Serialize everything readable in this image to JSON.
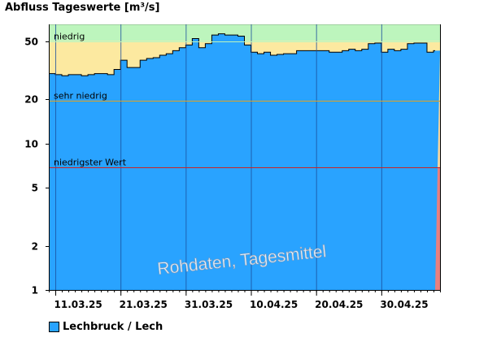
{
  "chart_data": {
    "type": "area",
    "title": "Abfluss Tageswerte [m³/s]",
    "yscale": "log",
    "ylim": [
      1,
      65
    ],
    "yticks": [
      1,
      2,
      5,
      10,
      20,
      50
    ],
    "ytick_labels": [
      "1",
      "2",
      "5",
      "10",
      "20",
      "50"
    ],
    "x_start": "2025-03-10",
    "x_days": 60,
    "xtick_days": [
      1,
      11,
      21,
      31,
      41,
      51
    ],
    "xtick_labels": [
      "11.03.25",
      "21.03.25",
      "31.03.25",
      "10.04.25",
      "20.04.25",
      "30.04.25"
    ],
    "thresholds": [
      {
        "name": "niedrig",
        "label": "niedrig",
        "value": 50,
        "band_color": "#bdf5bd",
        "line_color": "#bdf5bd"
      },
      {
        "name": "sehr niedrig",
        "label": "sehr niedrig",
        "value": 19.5,
        "band_color": "#fce9a0",
        "line_color": "#e0a020"
      },
      {
        "name": "niedrigster Wert",
        "label": "niedrigster Wert",
        "value": 6.9,
        "band_color": "#fcd9a0",
        "line_color": "#cc2222"
      }
    ],
    "bands": [
      {
        "from": 50,
        "to": 65,
        "color": "#bdf5bd"
      },
      {
        "from": 19.5,
        "to": 50,
        "color": "#fce9a0"
      },
      {
        "from": 6.9,
        "to": 19.5,
        "color": "#fcd9a0"
      },
      {
        "from": 1,
        "to": 6.9,
        "color": "#e88080"
      }
    ],
    "series": [
      {
        "name": "Lechbruck / Lech",
        "color": "#29a3ff",
        "values": [
          30,
          29.5,
          29,
          29.5,
          29.5,
          29,
          29.5,
          30,
          30,
          29.5,
          32,
          37,
          33,
          33,
          37,
          38,
          38.5,
          40,
          41,
          43,
          45,
          47,
          52,
          45,
          48,
          55,
          56,
          55,
          55,
          54,
          47,
          42,
          41,
          42,
          40,
          40.5,
          41,
          41,
          43,
          43,
          43,
          43,
          43,
          42,
          42,
          43,
          44,
          43,
          44,
          48,
          48.5,
          42,
          44,
          43,
          44,
          48,
          48.5,
          48.5,
          42,
          43,
          46
        ]
      }
    ],
    "legend": [
      {
        "label": "Lechbruck / Lech",
        "color": "#29a3ff"
      }
    ],
    "annotation": "Rohdaten, Tagesmittel"
  },
  "title": "Abfluss Tageswerte [m³/s]",
  "legend_label": "Lechbruck / Lech",
  "watermark": "Rohdaten, Tagesmittel"
}
